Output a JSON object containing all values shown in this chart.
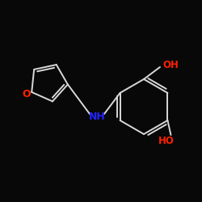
{
  "bg_color": "#080808",
  "bond_color": "#d8d8d8",
  "O_color": "#ff2000",
  "N_color": "#2222ff",
  "label_O": "O",
  "label_OH_top": "OH",
  "label_HO_bot": "HO",
  "label_NH": "NH",
  "figsize": [
    2.5,
    2.5
  ],
  "dpi": 100,
  "lw": 1.4
}
